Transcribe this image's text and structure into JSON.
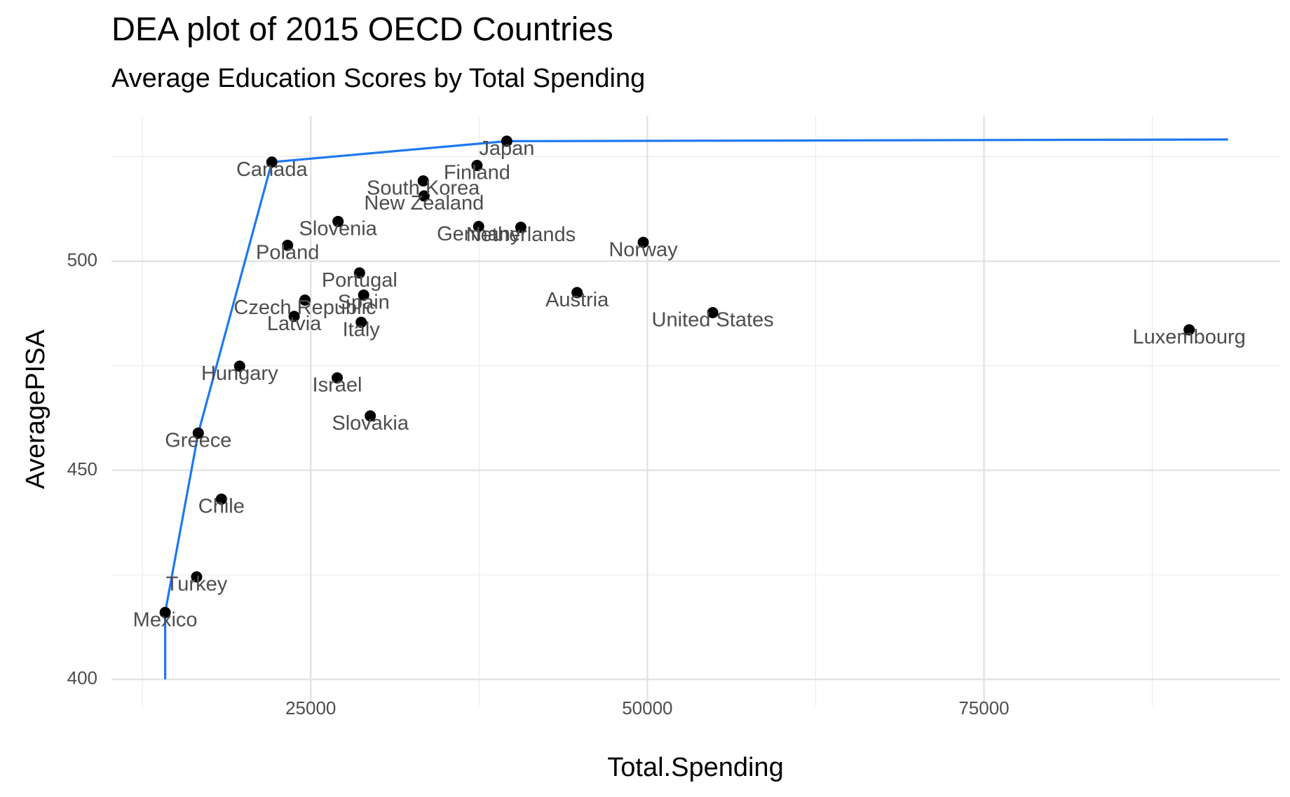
{
  "chart_data": {
    "type": "scatter",
    "title": "DEA plot of 2015 OECD Countries",
    "subtitle": "Average Education Scores by Total Spending",
    "x_label": "Total.Spending",
    "y_label": "AveragePISA",
    "xlim": [
      10200,
      97000
    ],
    "ylim": [
      393.5,
      534.8
    ],
    "xticks": [
      25000,
      50000,
      75000
    ],
    "yticks": [
      400,
      450,
      500
    ],
    "x_minor_ticks": [
      12500,
      37500,
      62500,
      87500
    ],
    "y_minor_ticks": [
      425,
      475,
      525
    ],
    "grid": true,
    "points": {
      "color": "#000000",
      "labels": [
        "Mexico",
        "Turkey",
        "Chile",
        "Greece",
        "Hungary",
        "Canada",
        "Poland",
        "Latvia",
        "Czech Republic",
        "Slovenia",
        "Israel",
        "Portugal",
        "Spain",
        "Italy",
        "Slovakia",
        "South Korea",
        "New Zealand",
        "Finland",
        "Germany",
        "Japan",
        "Netherlands",
        "Austria",
        "Norway",
        "United States",
        "Luxembourg"
      ],
      "x": [
        14188,
        16523,
        18366,
        16646,
        19717,
        22113,
        23280,
        23771,
        24570,
        27027,
        26966,
        28624,
        28931,
        28747,
        29423,
        33354,
        33416,
        37348,
        37470,
        39559,
        40603,
        44781,
        49695,
        54855,
        90239
      ],
      "y": [
        416.0,
        424.5,
        443.1,
        458.9,
        474.9,
        523.7,
        503.8,
        486.8,
        490.7,
        509.5,
        472.1,
        497.2,
        491.9,
        485.4,
        463.0,
        519.2,
        515.6,
        522.9,
        508.3,
        528.7,
        508.1,
        492.5,
        504.5,
        487.7,
        483.6
      ]
    },
    "frontier": {
      "color": "#1f78f0",
      "x": [
        14188,
        14188,
        16646,
        22113,
        39559,
        93127
      ],
      "y": [
        400,
        416.0,
        458.9,
        523.7,
        528.7,
        529.1
      ]
    }
  }
}
